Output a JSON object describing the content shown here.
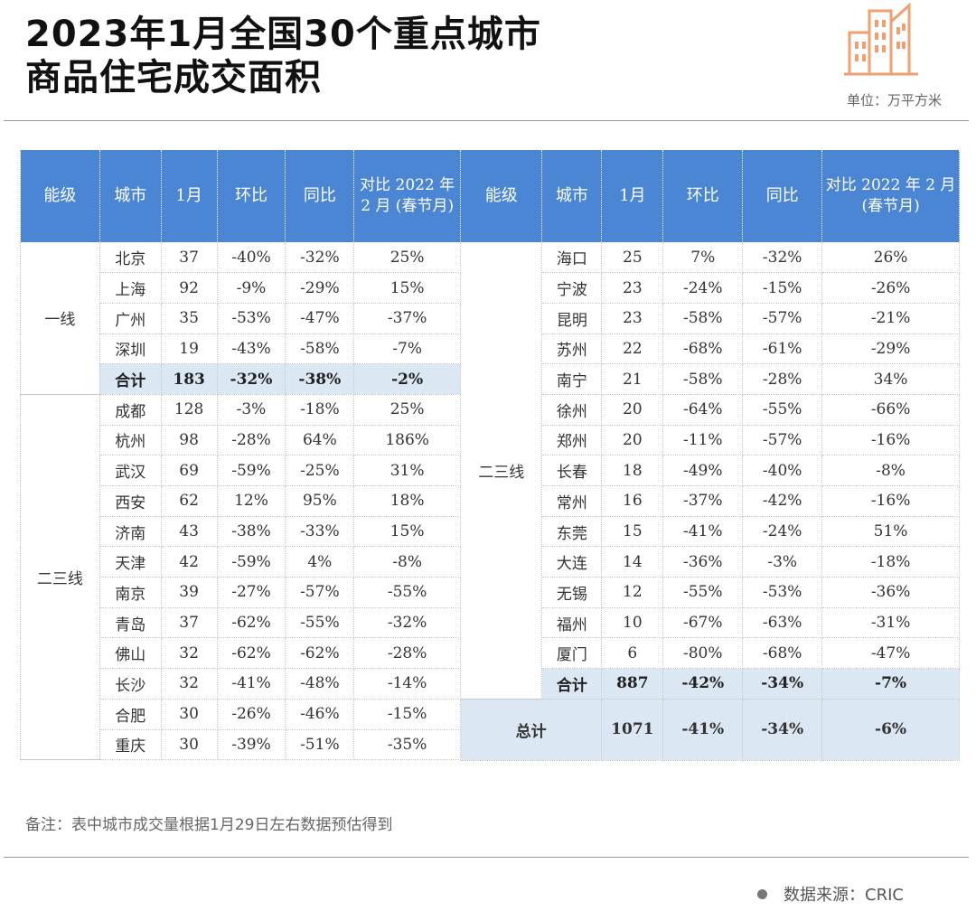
{
  "title": {
    "line1": "2023年1月全国30个重点城市",
    "line2": "商品住宅成交面积"
  },
  "logo_icon": "buildings-icon",
  "unit_label": "单位：万平方米",
  "accent_color": "#4a86d4",
  "highlight_color": "#dce7f4",
  "left_table": {
    "headers": [
      "能级",
      "城市",
      "1月",
      "环比",
      "同比",
      "对比 2022 年 2 月 (春节月)"
    ],
    "tier1": {
      "label": "一线",
      "rows": [
        [
          "北京",
          "37",
          "-40%",
          "-32%",
          "25%"
        ],
        [
          "上海",
          "92",
          "-9%",
          "-29%",
          "15%"
        ],
        [
          "广州",
          "35",
          "-53%",
          "-47%",
          "-37%"
        ],
        [
          "深圳",
          "19",
          "-43%",
          "-58%",
          "-7%"
        ]
      ],
      "total": [
        "合计",
        "183",
        "-32%",
        "-38%",
        "-2%"
      ]
    },
    "tier23": {
      "label": "二三线",
      "rows": [
        [
          "成都",
          "128",
          "-3%",
          "-18%",
          "25%"
        ],
        [
          "杭州",
          "98",
          "-28%",
          "64%",
          "186%"
        ],
        [
          "武汉",
          "69",
          "-59%",
          "-25%",
          "31%"
        ],
        [
          "西安",
          "62",
          "12%",
          "95%",
          "18%"
        ],
        [
          "济南",
          "43",
          "-38%",
          "-33%",
          "15%"
        ],
        [
          "天津",
          "42",
          "-59%",
          "4%",
          "-8%"
        ],
        [
          "南京",
          "39",
          "-27%",
          "-57%",
          "-55%"
        ],
        [
          "青岛",
          "37",
          "-62%",
          "-55%",
          "-32%"
        ],
        [
          "佛山",
          "32",
          "-62%",
          "-62%",
          "-28%"
        ],
        [
          "长沙",
          "32",
          "-41%",
          "-48%",
          "-14%"
        ],
        [
          "合肥",
          "30",
          "-26%",
          "-46%",
          "-15%"
        ],
        [
          "重庆",
          "30",
          "-39%",
          "-51%",
          "-35%"
        ]
      ]
    }
  },
  "right_table": {
    "headers": [
      "能级",
      "城市",
      "1月",
      "环比",
      "同比",
      "对比 2022 年 2 月(春节月)"
    ],
    "tier23": {
      "label": "二三线",
      "rows": [
        [
          "海口",
          "25",
          "7%",
          "-32%",
          "26%"
        ],
        [
          "宁波",
          "23",
          "-24%",
          "-15%",
          "-26%"
        ],
        [
          "昆明",
          "23",
          "-58%",
          "-57%",
          "-21%"
        ],
        [
          "苏州",
          "22",
          "-68%",
          "-61%",
          "-29%"
        ],
        [
          "南宁",
          "21",
          "-58%",
          "-28%",
          "34%"
        ],
        [
          "徐州",
          "20",
          "-64%",
          "-55%",
          "-66%"
        ],
        [
          "郑州",
          "20",
          "-11%",
          "-57%",
          "-16%"
        ],
        [
          "长春",
          "18",
          "-49%",
          "-40%",
          "-8%"
        ],
        [
          "常州",
          "16",
          "-37%",
          "-42%",
          "-16%"
        ],
        [
          "东莞",
          "15",
          "-41%",
          "-24%",
          "51%"
        ],
        [
          "大连",
          "14",
          "-36%",
          "-3%",
          "-18%"
        ],
        [
          "无锡",
          "12",
          "-55%",
          "-53%",
          "-36%"
        ],
        [
          "福州",
          "10",
          "-67%",
          "-63%",
          "-31%"
        ],
        [
          "厦门",
          "6",
          "-80%",
          "-68%",
          "-47%"
        ]
      ],
      "total": [
        "合计",
        "887",
        "-42%",
        "-34%",
        "-7%"
      ]
    },
    "grand_total": [
      "总计",
      "1071",
      "-41%",
      "-34%",
      "-6%"
    ]
  },
  "note": "备注：表中城市成交量根据1月29日左右数据预估得到",
  "source": "数据来源：CRIC"
}
